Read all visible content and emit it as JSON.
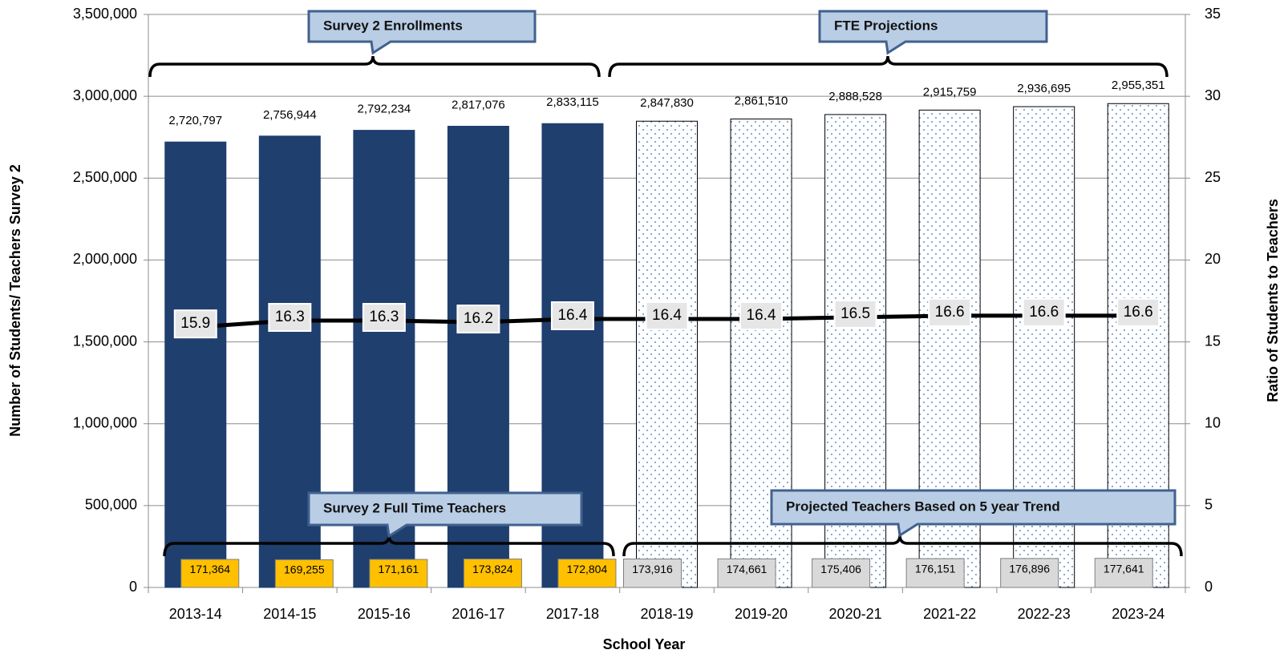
{
  "chart_data": {
    "type": "bar",
    "x_label": "School Year",
    "y_label": "Number of Students/ Teachers Survey 2",
    "y2_label": "Ratio of Students to Teachers",
    "categories": [
      "2013-14",
      "2014-15",
      "2015-16",
      "2016-17",
      "2017-18",
      "2018-19",
      "2019-20",
      "2020-21",
      "2021-22",
      "2022-23",
      "2023-24"
    ],
    "ylim": [
      0,
      3500000
    ],
    "yticks": [
      0,
      {
        "value": 500000,
        "label": "500,000"
      },
      {
        "value": 1000000,
        "label": "1,000,000"
      },
      {
        "value": 1500000,
        "label": "1,500,000"
      },
      {
        "value": 2000000,
        "label": "2,000,000"
      },
      {
        "value": 2500000,
        "label": "2,500,000"
      },
      {
        "value": 3000000,
        "label": "3,000,000"
      },
      {
        "value": 3500000,
        "label": "3,500,000"
      }
    ],
    "y2lim": [
      0,
      35
    ],
    "y2ticks": [
      0,
      5,
      10,
      15,
      20,
      25,
      30,
      35
    ],
    "grid": true,
    "series": [
      {
        "type": "bar",
        "color": "#1f3f6e",
        "styles": [
          "solid",
          "solid",
          "solid",
          "solid",
          "solid",
          "dotted",
          "dotted",
          "dotted",
          "dotted",
          "dotted",
          "dotted"
        ],
        "values": [
          2720797,
          2756944,
          2792234,
          2817076,
          2833115,
          2847830,
          2861510,
          2888528,
          2915759,
          2936695,
          2955351
        ],
        "value_labels": [
          "2,720,797",
          "2,756,944",
          "2,792,234",
          "2,817,076",
          "2,833,115",
          "2,847,830",
          "2,861,510",
          "2,888,528",
          "2,915,759",
          "2,936,695",
          "2,955,351"
        ]
      },
      {
        "type": "bar",
        "colors": [
          "#ffc000",
          "#ffc000",
          "#ffc000",
          "#ffc000",
          "#ffc000",
          "#d9d9d9",
          "#d9d9d9",
          "#d9d9d9",
          "#d9d9d9",
          "#d9d9d9",
          "#d9d9d9"
        ],
        "values": [
          171364,
          169255,
          171161,
          173824,
          172804,
          173916,
          174661,
          175406,
          176151,
          176896,
          177641
        ],
        "value_labels": [
          "171,364",
          "169,255",
          "171,161",
          "173,824",
          "172,804",
          "173,916",
          "174,661",
          "175,406",
          "176,151",
          "176,896",
          "177,641"
        ]
      },
      {
        "type": "line",
        "axis": "y2",
        "color": "#000000",
        "values": [
          15.9,
          16.3,
          16.3,
          16.2,
          16.4,
          16.4,
          16.4,
          16.5,
          16.6,
          16.6,
          16.6
        ]
      }
    ],
    "annotations": [
      "Survey 2 Enrollments",
      "FTE Projections",
      "Survey 2 Full Time Teachers",
      "Projected Teachers Based on 5 year Trend"
    ]
  }
}
